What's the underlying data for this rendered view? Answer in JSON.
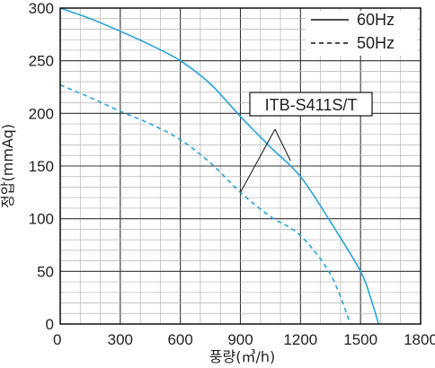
{
  "chart_data": {
    "type": "line",
    "title": "",
    "xlabel": "풍량(㎥/h)",
    "ylabel": "정압(mmAq)",
    "xlim": [
      0,
      1800
    ],
    "ylim": [
      0,
      300
    ],
    "x_ticks": [
      0,
      300,
      600,
      900,
      1200,
      1500,
      1800
    ],
    "y_ticks": [
      0,
      50,
      100,
      150,
      200,
      250,
      300
    ],
    "x_tick_labels": [
      "0",
      "300",
      "600",
      "900",
      "1200",
      "1500",
      "1800"
    ],
    "y_tick_labels": [
      "0",
      "50",
      "100",
      "150",
      "200",
      "250",
      "300"
    ],
    "grid": "on",
    "legend": {
      "placement": "top-right"
    },
    "series": [
      {
        "name": "60Hz",
        "style": "solid",
        "color": "#29a3d8",
        "x": [
          0,
          150,
          300,
          450,
          600,
          750,
          900,
          1050,
          1200,
          1350,
          1500,
          1550,
          1590
        ],
        "y": [
          300,
          290,
          278,
          265,
          250,
          228,
          197,
          168,
          140,
          97,
          50,
          25,
          0
        ]
      },
      {
        "name": "50Hz",
        "style": "dashed",
        "color": "#29a3d8",
        "x": [
          0,
          150,
          300,
          450,
          600,
          750,
          900,
          1050,
          1200,
          1350,
          1450
        ],
        "y": [
          227,
          215,
          202,
          190,
          175,
          153,
          125,
          102,
          84,
          47,
          0
        ]
      }
    ],
    "annotations": [
      {
        "text": "ITB-S411S/T"
      }
    ]
  }
}
